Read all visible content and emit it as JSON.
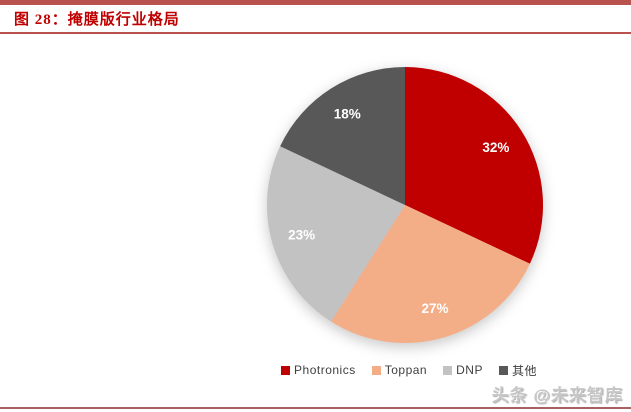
{
  "header": {
    "title": "图 28：掩膜版行业格局"
  },
  "colors": {
    "top_bar": "#b9514e",
    "title_text": "#c00000",
    "title_rule": "#b9514e",
    "bottom_rule": "#aa6060",
    "legend_text": "#3f3f3f",
    "slice_label_text": "#ffffff"
  },
  "chart_data": {
    "type": "pie",
    "title": "掩膜版行业格局",
    "start_angle_deg": 0,
    "direction": "clockwise",
    "legend_position": "bottom",
    "labels_inside": true,
    "slices": [
      {
        "id": "photronics",
        "label": "Photronics",
        "value": 32,
        "display": "32%",
        "color": "#c00000"
      },
      {
        "id": "toppan",
        "label": "Toppan",
        "value": 27,
        "display": "27%",
        "color": "#f4ae87"
      },
      {
        "id": "dnp",
        "label": "DNP",
        "value": 23,
        "display": "23%",
        "color": "#c2c2c2"
      },
      {
        "id": "other",
        "label": "其他",
        "value": 18,
        "display": "18%",
        "color": "#585858"
      }
    ]
  },
  "watermark": {
    "text": "头条 @未来智库"
  }
}
